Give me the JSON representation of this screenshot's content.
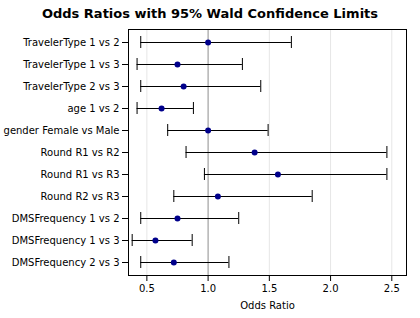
{
  "chart_data": {
    "type": "forest",
    "title": "Odds Ratios with 95% Wald Confidence Limits",
    "xlabel": "Odds Ratio",
    "categories": [
      "TravelerType 1 vs 2",
      "TravelerType 1 vs 3",
      "TravelerType 2 vs 3",
      "age 1 vs 2",
      "gender Female vs Male",
      "Round R1 vs R2",
      "Round R1 vs R3",
      "Round R2 vs R3",
      "DMSFrequency 1 vs 2",
      "DMSFrequency 1 vs 3",
      "DMSFrequency 2 vs 3"
    ],
    "values": [
      1.0,
      0.75,
      0.8,
      0.62,
      1.0,
      1.38,
      1.57,
      1.08,
      0.75,
      0.57,
      0.72
    ],
    "ci_lower": [
      0.45,
      0.42,
      0.45,
      0.42,
      0.67,
      0.82,
      0.97,
      0.72,
      0.45,
      0.38,
      0.45
    ],
    "ci_upper": [
      1.68,
      1.28,
      1.43,
      0.88,
      1.49,
      2.46,
      2.46,
      1.85,
      1.25,
      0.87,
      1.17
    ],
    "reference_line": 1.0,
    "color": "#00008B",
    "xlim": [
      0.35,
      2.62
    ],
    "xticks": [
      0.5,
      {
        "value": 1.0,
        "label": "1.0"
      },
      1.5,
      {
        "value": 2.0,
        "label": "2.0"
      },
      2.5
    ],
    "grid": true
  }
}
